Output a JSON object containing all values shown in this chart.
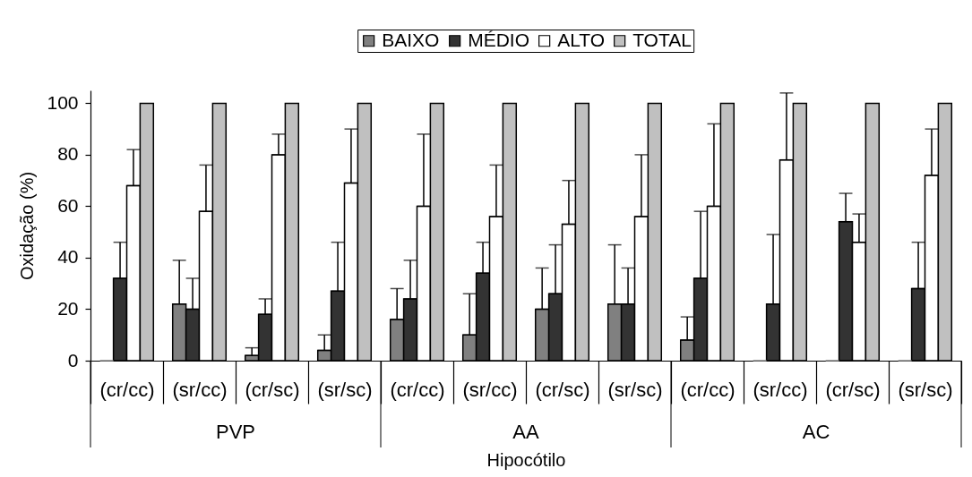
{
  "chart_data": {
    "type": "bar",
    "xlabel": "Hipocótilo",
    "ylabel": "Oxidação (%)",
    "categories": [
      "(cr/cc)",
      "(sr/cc)",
      "(cr/sc)",
      "(sr/sc)",
      "(cr/cc)",
      "(sr/cc)",
      "(cr/sc)",
      "(sr/sc)",
      "(cr/cc)",
      "(sr/cc)",
      "(cr/sc)",
      "(sr/sc)"
    ],
    "annotations": [
      "PVP",
      "AA",
      "AC"
    ],
    "series": [
      {
        "name": "BAIXO",
        "color": "#808080",
        "values": [
          0,
          22,
          2,
          4,
          16,
          10,
          20,
          22,
          8,
          0,
          0,
          0
        ],
        "errors": [
          null,
          [
            22,
            39
          ],
          [
            2,
            5
          ],
          [
            4,
            10
          ],
          [
            16,
            28
          ],
          [
            10,
            26
          ],
          [
            20,
            36
          ],
          [
            22,
            45
          ],
          [
            8,
            17
          ],
          null,
          null,
          null
        ]
      },
      {
        "name": "MÉDIO",
        "color": "#333333",
        "values": [
          32,
          20,
          18,
          27,
          24,
          34,
          26,
          22,
          32,
          22,
          54,
          28
        ],
        "errors": [
          [
            32,
            46
          ],
          [
            20,
            32
          ],
          [
            18,
            24
          ],
          [
            27,
            46
          ],
          [
            24,
            39
          ],
          [
            34,
            46
          ],
          [
            26,
            45
          ],
          [
            22,
            36
          ],
          [
            32,
            58
          ],
          [
            22,
            49
          ],
          [
            54,
            65
          ],
          [
            28,
            46
          ]
        ]
      },
      {
        "name": "ALTO",
        "color": "#ffffff",
        "values": [
          68,
          58,
          80,
          69,
          60,
          56,
          53,
          56,
          60,
          78,
          46,
          72
        ],
        "errors": [
          [
            68,
            82
          ],
          [
            58,
            76
          ],
          [
            80,
            88
          ],
          [
            69,
            90
          ],
          [
            60,
            88
          ],
          [
            56,
            76
          ],
          [
            53,
            70
          ],
          [
            56,
            80
          ],
          [
            60,
            92
          ],
          [
            78,
            104
          ],
          [
            46,
            57
          ],
          [
            72,
            90
          ]
        ]
      },
      {
        "name": "TOTAL",
        "color": "#c0c0c0",
        "values": [
          100,
          100,
          100,
          100,
          100,
          100,
          100,
          100,
          100,
          100,
          100,
          100
        ]
      }
    ],
    "ylim": [
      0,
      105
    ],
    "yticks": [
      0,
      20,
      40,
      60,
      80,
      100
    ],
    "legend": "top"
  }
}
